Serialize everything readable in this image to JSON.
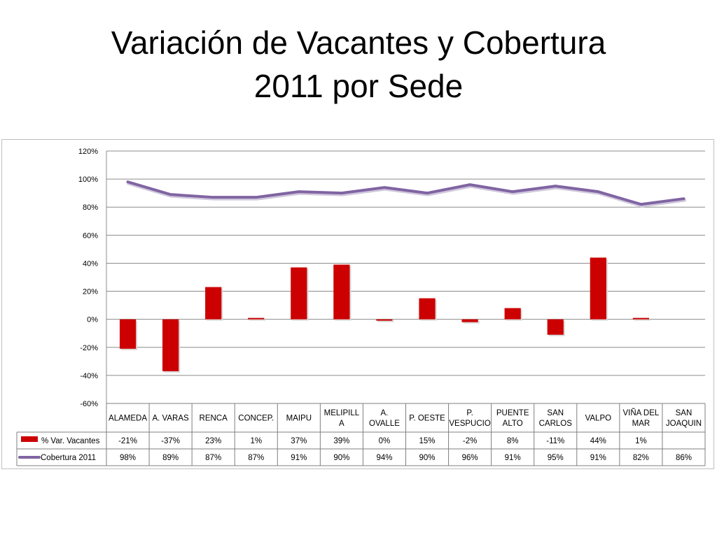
{
  "title_line1": "Variación de Vacantes y Cobertura",
  "title_line2": "2011 por Sede",
  "chart_data": {
    "type": "bar",
    "categories": [
      "ALAMEDA",
      "A. VARAS",
      "RENCA",
      "CONCEP.",
      "MAIPU",
      "MELIPILLA",
      "A. OVALLE",
      "P. OESTE",
      "P. VESPUCIO",
      "PUENTE ALTO",
      "SAN CARLOS",
      "VALPO",
      "VIÑA DEL MAR",
      "SAN JOAQUIN"
    ],
    "category_lines": [
      [
        "ALAMEDA"
      ],
      [
        "A. VARAS"
      ],
      [
        "RENCA"
      ],
      [
        "CONCEP."
      ],
      [
        "MAIPU"
      ],
      [
        "MELIPILL",
        "A"
      ],
      [
        "A.",
        "OVALLE"
      ],
      [
        "P. OESTE"
      ],
      [
        "P.",
        "VESPUCIO"
      ],
      [
        "PUENTE",
        "ALTO"
      ],
      [
        "SAN",
        "CARLOS"
      ],
      [
        "VALPO"
      ],
      [
        "VIÑA DEL",
        "MAR"
      ],
      [
        "SAN",
        "JOAQUIN"
      ]
    ],
    "series": [
      {
        "name": "% Var. Vacantes",
        "type": "bar",
        "color": "#cc0000",
        "values": [
          -21,
          -37,
          23,
          1,
          37,
          39,
          0,
          15,
          -2,
          8,
          -11,
          44,
          1,
          null
        ],
        "labels": [
          "-21%",
          "-37%",
          "23%",
          "1%",
          "37%",
          "39%",
          "0%",
          "15%",
          "-2%",
          "8%",
          "-11%",
          "44%",
          "1%",
          ""
        ]
      },
      {
        "name": "Cobertura 2011",
        "type": "line",
        "color": "#8064a2",
        "values": [
          98,
          89,
          87,
          87,
          91,
          90,
          94,
          90,
          96,
          91,
          95,
          91,
          82,
          86
        ],
        "labels": [
          "98%",
          "89%",
          "87%",
          "87%",
          "91%",
          "90%",
          "94%",
          "90%",
          "96%",
          "91%",
          "95%",
          "91%",
          "82%",
          "86%"
        ]
      }
    ],
    "yticks": [
      "120%",
      "100%",
      "80%",
      "60%",
      "40%",
      "20%",
      "0%",
      "-20%",
      "-40%",
      "-60%"
    ],
    "ytick_values": [
      120,
      100,
      80,
      60,
      40,
      20,
      0,
      -20,
      -40,
      -60
    ],
    "ylim": [
      -60,
      120
    ],
    "grid": true,
    "legend": "data-table"
  }
}
